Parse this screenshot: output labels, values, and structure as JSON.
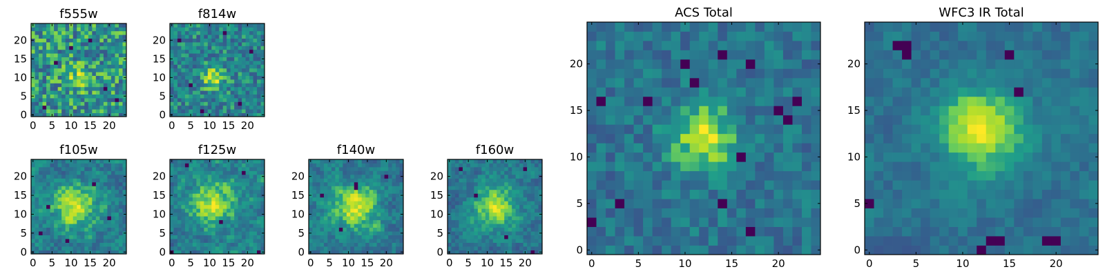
{
  "chart_data": [
    {
      "type": "heatmap",
      "title": "f555w",
      "grid": false,
      "xlim": [
        0,
        24
      ],
      "ylim": [
        0,
        24
      ],
      "xticks": [
        0,
        5,
        10,
        15,
        20
      ],
      "yticks": [
        0,
        5,
        10,
        15,
        20
      ],
      "colormap": "viridis",
      "peak": [
        12,
        10
      ],
      "peak_strength": 0.25,
      "peak_width": 2.5,
      "noise": 1.0,
      "seed": 11,
      "dark_pixels": [
        [
          3,
          2
        ],
        [
          19,
          7
        ],
        [
          6,
          14
        ],
        [
          15,
          20
        ],
        [
          22,
          4
        ],
        [
          10,
          18
        ]
      ]
    },
    {
      "type": "heatmap",
      "title": "f814w",
      "grid": false,
      "xlim": [
        0,
        24
      ],
      "ylim": [
        0,
        24
      ],
      "xticks": [
        0,
        5,
        10,
        15,
        20
      ],
      "yticks": [
        0,
        5,
        10,
        15,
        20
      ],
      "colormap": "viridis",
      "peak": [
        11,
        10
      ],
      "peak_strength": 0.55,
      "peak_width": 2.0,
      "noise": 1.0,
      "seed": 23,
      "dark_pixels": [
        [
          2,
          20
        ],
        [
          18,
          3
        ],
        [
          21,
          17
        ],
        [
          5,
          8
        ],
        [
          14,
          22
        ],
        [
          8,
          1
        ]
      ]
    },
    {
      "type": "heatmap",
      "title": "f105w",
      "grid": false,
      "xlim": [
        0,
        24
      ],
      "ylim": [
        0,
        24
      ],
      "xticks": [
        0,
        5,
        10,
        15,
        20
      ],
      "yticks": [
        0,
        5,
        10,
        15,
        20
      ],
      "colormap": "viridis",
      "peak": [
        11,
        12
      ],
      "peak_strength": 0.3,
      "peak_width": 4.0,
      "noise": 0.75,
      "smooth": 1,
      "seed": 37,
      "dark_pixels": [
        [
          4,
          12
        ],
        [
          9,
          3
        ],
        [
          20,
          9
        ],
        [
          16,
          18
        ],
        [
          2,
          5
        ]
      ]
    },
    {
      "type": "heatmap",
      "title": "f125w",
      "grid": false,
      "xlim": [
        0,
        24
      ],
      "ylim": [
        0,
        24
      ],
      "xticks": [
        0,
        5,
        10,
        15,
        20
      ],
      "yticks": [
        0,
        5,
        10,
        15,
        20
      ],
      "colormap": "viridis",
      "peak": [
        11,
        13
      ],
      "peak_strength": 0.3,
      "peak_width": 4.0,
      "noise": 0.75,
      "smooth": 1,
      "seed": 41,
      "dark_pixels": [
        [
          4,
          23
        ],
        [
          0,
          0
        ],
        [
          23,
          0
        ],
        [
          13,
          8
        ],
        [
          19,
          21
        ]
      ]
    },
    {
      "type": "heatmap",
      "title": "f140w",
      "grid": false,
      "xlim": [
        0,
        24
      ],
      "ylim": [
        0,
        24
      ],
      "xticks": [
        0,
        5,
        10,
        15,
        20
      ],
      "yticks": [
        0,
        5,
        10,
        15,
        20
      ],
      "colormap": "viridis",
      "peak": [
        12,
        12
      ],
      "peak_strength": 0.35,
      "peak_width": 4.0,
      "noise": 0.75,
      "smooth": 1,
      "seed": 53,
      "dark_pixels": [
        [
          12,
          18
        ],
        [
          12,
          17
        ],
        [
          3,
          15
        ],
        [
          20,
          20
        ],
        [
          8,
          6
        ]
      ]
    },
    {
      "type": "heatmap",
      "title": "f160w",
      "grid": false,
      "xlim": [
        0,
        24
      ],
      "ylim": [
        0,
        24
      ],
      "xticks": [
        0,
        5,
        10,
        15,
        20
      ],
      "yticks": [
        0,
        5,
        10,
        15,
        20
      ],
      "colormap": "viridis",
      "peak": [
        12,
        12
      ],
      "peak_strength": 0.35,
      "peak_width": 4.0,
      "noise": 0.75,
      "smooth": 1,
      "seed": 67,
      "dark_pixels": [
        [
          3,
          22
        ],
        [
          20,
          22
        ],
        [
          15,
          4
        ],
        [
          22,
          0
        ],
        [
          7,
          15
        ]
      ]
    },
    {
      "type": "heatmap",
      "title": "ACS Total",
      "grid": false,
      "xlim": [
        0,
        24
      ],
      "ylim": [
        0,
        24
      ],
      "xticks": [
        0,
        5,
        10,
        15,
        20
      ],
      "yticks": [
        0,
        5,
        10,
        15,
        20
      ],
      "colormap": "viridis",
      "peak": [
        12,
        12
      ],
      "peak_strength": 0.6,
      "peak_width": 2.5,
      "noise": 0.7,
      "seed": 79,
      "dark_pixels": [
        [
          14,
          21
        ],
        [
          10,
          20
        ],
        [
          17,
          20
        ],
        [
          11,
          18
        ],
        [
          6,
          16
        ],
        [
          1,
          16
        ],
        [
          22,
          16
        ],
        [
          20,
          15
        ],
        [
          21,
          14
        ],
        [
          16,
          10
        ],
        [
          3,
          5
        ],
        [
          0,
          3
        ],
        [
          17,
          2
        ],
        [
          14,
          5
        ]
      ]
    },
    {
      "type": "heatmap",
      "title": "WFC3 IR Total",
      "grid": false,
      "xlim": [
        0,
        24
      ],
      "ylim": [
        0,
        24
      ],
      "xticks": [
        0,
        5,
        10,
        15,
        20
      ],
      "yticks": [
        0,
        5,
        10,
        15,
        20
      ],
      "colormap": "viridis",
      "peak": [
        12,
        13
      ],
      "peak_strength": 0.55,
      "peak_width": 3.0,
      "noise": 0.65,
      "smooth": 1,
      "seed": 97,
      "dark_pixels": [
        [
          4,
          22
        ],
        [
          3,
          22
        ],
        [
          4,
          21
        ],
        [
          0,
          5
        ],
        [
          13,
          1
        ],
        [
          14,
          1
        ],
        [
          19,
          1
        ],
        [
          20,
          1
        ],
        [
          12,
          0
        ],
        [
          15,
          21
        ],
        [
          16,
          17
        ]
      ]
    }
  ]
}
